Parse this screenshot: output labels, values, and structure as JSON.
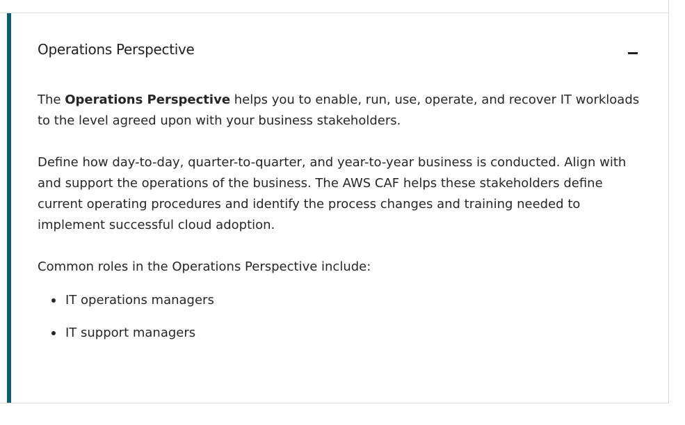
{
  "accordion": {
    "title": "Operations Perspective",
    "toggle_icon": "minus-icon",
    "accent_color": "#0b5e72",
    "expanded": true
  },
  "content": {
    "intro_prefix": "The ",
    "intro_bold": "Operations Perspective",
    "intro_suffix": " helps you to enable, run, use, operate, and recover IT workloads to the level agreed upon with your business stakeholders.",
    "paragraph_2": "Define how day-to-day, quarter-to-quarter, and year-to-year business is conducted. Align with and support the operations of the business. The AWS CAF helps these stakeholders define current operating procedures and identify the process changes and training needed to implement successful cloud adoption.",
    "roles_intro": "Common roles in the Operations Perspective include:",
    "roles": [
      "IT operations managers",
      "IT support managers"
    ]
  }
}
